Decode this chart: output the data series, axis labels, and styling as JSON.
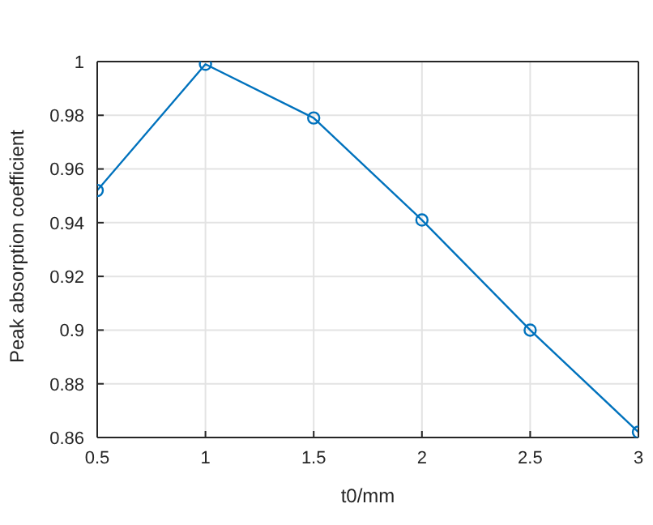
{
  "chart_data": {
    "type": "line",
    "xlabel": "t0/mm",
    "ylabel": "Peak absorption coefficient",
    "x": [
      0.5,
      1,
      1.5,
      2,
      2.5,
      3
    ],
    "series": [
      {
        "color": "#0072bd",
        "values": [
          0.952,
          0.999,
          0.979,
          0.941,
          0.9,
          0.862
        ]
      }
    ],
    "xlim": [
      0.5,
      3
    ],
    "xticks": [
      0.5,
      1,
      1.5,
      2,
      2.5,
      3
    ],
    "ylim": [
      0.86,
      1
    ],
    "yticks": [
      0.86,
      0.88,
      0.9,
      0.92,
      0.94,
      0.96,
      0.98,
      1
    ],
    "grid": true,
    "marker": "circle",
    "line_style": "solid"
  }
}
